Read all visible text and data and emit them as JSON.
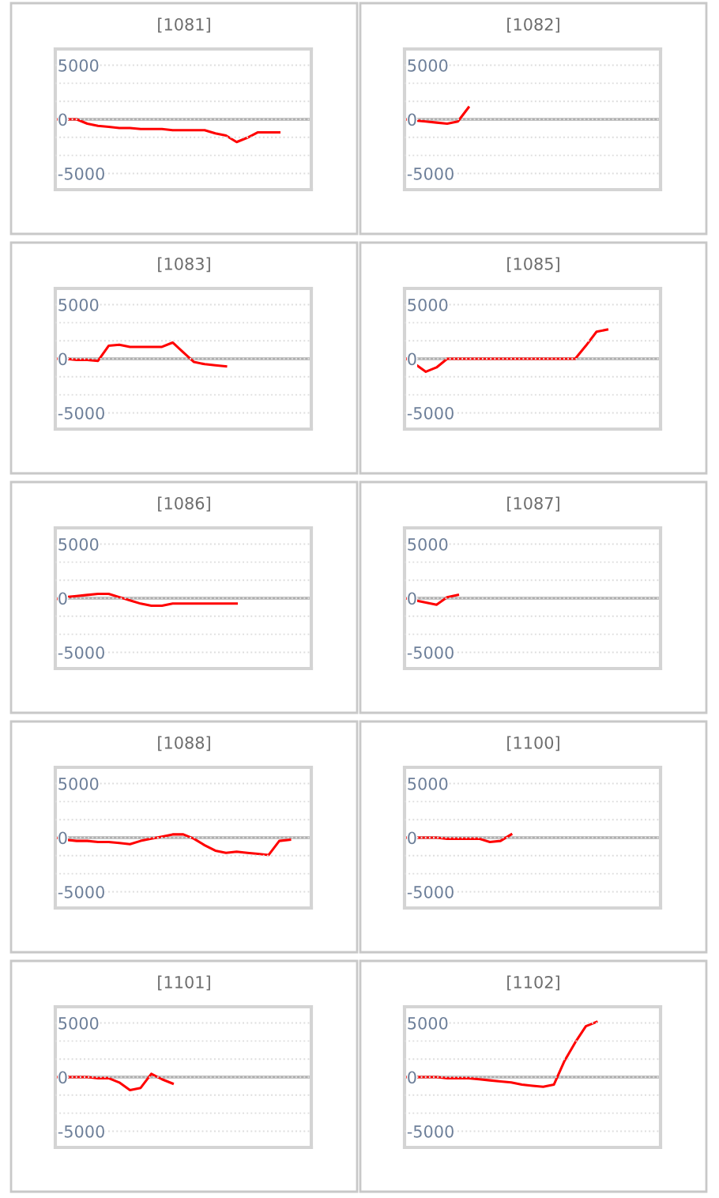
{
  "chart_data": [
    {
      "type": "line",
      "title": "[1081]",
      "categories": [
        null,
        null,
        null,
        null,
        null,
        null,
        null,
        null,
        null,
        null,
        null,
        null,
        null,
        null,
        null,
        null,
        null,
        null,
        null,
        null,
        null,
        null,
        null,
        null,
        null
      ],
      "series": [
        {
          "color": "#ff0000",
          "values": [
            0,
            0,
            0,
            -400,
            -600,
            -700,
            -800,
            -800,
            -900,
            -900,
            -900,
            -1000,
            -1000,
            -1000,
            -1000,
            -1300,
            -1500,
            -2100,
            -1700,
            -1200,
            -1200,
            -1200,
            null,
            null,
            null
          ]
        }
      ],
      "ylim": [
        -6500,
        6500
      ],
      "yticks": [
        -5000,
        {
          "value": -3333,
          "label": null
        },
        {
          "value": -1667,
          "label": null
        },
        0,
        {
          "value": 1667,
          "label": null
        },
        {
          "value": 3333,
          "label": null
        },
        5000
      ],
      "grid": "y",
      "tick_labels": "y",
      "ref_lines": [
        {
          "axis": "y",
          "value": 0,
          "color": "#b0b0b0"
        }
      ]
    },
    {
      "type": "line",
      "title": "[1082]",
      "categories": [
        null,
        null,
        null,
        null,
        null,
        null,
        null,
        null,
        null,
        null,
        null,
        null,
        null,
        null,
        null,
        null,
        null,
        null,
        null,
        null,
        null,
        null,
        null,
        null,
        null
      ],
      "series": [
        {
          "color": "#ff0000",
          "values": [
            0,
            -100,
            -200,
            -300,
            -400,
            -200,
            1100,
            null,
            null,
            null,
            null,
            null,
            null,
            null,
            null,
            null,
            null,
            null,
            null,
            null,
            null,
            null,
            null,
            null,
            null
          ]
        }
      ],
      "ylim": [
        -6500,
        6500
      ],
      "yticks": [
        -5000,
        {
          "value": -3333,
          "label": null
        },
        {
          "value": -1667,
          "label": null
        },
        0,
        {
          "value": 1667,
          "label": null
        },
        {
          "value": 3333,
          "label": null
        },
        5000
      ],
      "grid": "y",
      "tick_labels": "y",
      "ref_lines": [
        {
          "axis": "y",
          "value": 0,
          "color": "#b0b0b0"
        }
      ]
    },
    {
      "type": "line",
      "title": "[1083]",
      "categories": [
        null,
        null,
        null,
        null,
        null,
        null,
        null,
        null,
        null,
        null,
        null,
        null,
        null,
        null,
        null,
        null,
        null,
        null,
        null,
        null,
        null,
        null,
        null,
        null,
        null
      ],
      "series": [
        {
          "color": "#ff0000",
          "values": [
            0,
            0,
            -100,
            -100,
            -200,
            1200,
            1300,
            1100,
            1100,
            1100,
            1100,
            1500,
            600,
            -300,
            -500,
            -600,
            -700,
            null,
            null,
            null,
            null,
            null,
            null,
            null,
            null
          ]
        }
      ],
      "ylim": [
        -6500,
        6500
      ],
      "yticks": [
        -5000,
        {
          "value": -3333,
          "label": null
        },
        {
          "value": -1667,
          "label": null
        },
        0,
        {
          "value": 1667,
          "label": null
        },
        {
          "value": 3333,
          "label": null
        },
        5000
      ],
      "grid": "y",
      "tick_labels": "y",
      "ref_lines": [
        {
          "axis": "y",
          "value": 0,
          "color": "#b0b0b0"
        }
      ]
    },
    {
      "type": "line",
      "title": "[1085]",
      "categories": [
        null,
        null,
        null,
        null,
        null,
        null,
        null,
        null,
        null,
        null,
        null,
        null,
        null,
        null,
        null,
        null,
        null,
        null,
        null,
        null,
        null,
        null,
        null,
        null,
        null
      ],
      "series": [
        {
          "color": "#ff0000",
          "values": [
            100,
            -500,
            -1200,
            -800,
            0,
            0,
            0,
            0,
            0,
            0,
            0,
            0,
            0,
            0,
            0,
            0,
            0,
            1200,
            2500,
            2700,
            null,
            null,
            null,
            null,
            null
          ]
        }
      ],
      "ylim": [
        -6500,
        6500
      ],
      "yticks": [
        -5000,
        {
          "value": -3333,
          "label": null
        },
        {
          "value": -1667,
          "label": null
        },
        0,
        {
          "value": 1667,
          "label": null
        },
        {
          "value": 3333,
          "label": null
        },
        5000
      ],
      "grid": "y",
      "tick_labels": "y",
      "ref_lines": [
        {
          "axis": "y",
          "value": 0,
          "color": "#b0b0b0"
        }
      ]
    },
    {
      "type": "line",
      "title": "[1086]",
      "categories": [
        null,
        null,
        null,
        null,
        null,
        null,
        null,
        null,
        null,
        null,
        null,
        null,
        null,
        null,
        null,
        null,
        null,
        null,
        null,
        null,
        null,
        null,
        null,
        null,
        null
      ],
      "series": [
        {
          "color": "#ff0000",
          "values": [
            -100,
            100,
            200,
            300,
            400,
            400,
            100,
            -200,
            -500,
            -700,
            -700,
            -500,
            -500,
            -500,
            -500,
            -500,
            -500,
            -500,
            null,
            null,
            null,
            null,
            null,
            null,
            null
          ]
        }
      ],
      "ylim": [
        -6500,
        6500
      ],
      "yticks": [
        -5000,
        {
          "value": -3333,
          "label": null
        },
        {
          "value": -1667,
          "label": null
        },
        0,
        {
          "value": 1667,
          "label": null
        },
        {
          "value": 3333,
          "label": null
        },
        5000
      ],
      "grid": "y",
      "tick_labels": "y",
      "ref_lines": [
        {
          "axis": "y",
          "value": 0,
          "color": "#b0b0b0"
        }
      ]
    },
    {
      "type": "line",
      "title": "[1087]",
      "categories": [
        null,
        null,
        null,
        null,
        null,
        null,
        null,
        null,
        null,
        null,
        null,
        null,
        null,
        null,
        null,
        null,
        null,
        null,
        null,
        null,
        null,
        null,
        null,
        null,
        null
      ],
      "series": [
        {
          "color": "#ff0000",
          "values": [
            0,
            -200,
            -400,
            -600,
            100,
            300,
            null,
            null,
            null,
            null,
            null,
            null,
            null,
            null,
            null,
            null,
            null,
            null,
            null,
            null,
            null,
            null,
            null,
            null,
            null
          ]
        }
      ],
      "ylim": [
        -6500,
        6500
      ],
      "yticks": [
        -5000,
        {
          "value": -3333,
          "label": null
        },
        {
          "value": -1667,
          "label": null
        },
        0,
        {
          "value": 1667,
          "label": null
        },
        {
          "value": 3333,
          "label": null
        },
        5000
      ],
      "grid": "y",
      "tick_labels": "y",
      "ref_lines": [
        {
          "axis": "y",
          "value": 0,
          "color": "#b0b0b0"
        }
      ]
    },
    {
      "type": "line",
      "title": "[1088]",
      "categories": [
        null,
        null,
        null,
        null,
        null,
        null,
        null,
        null,
        null,
        null,
        null,
        null,
        null,
        null,
        null,
        null,
        null,
        null,
        null,
        null,
        null,
        null,
        null,
        null,
        null
      ],
      "series": [
        {
          "color": "#ff0000",
          "values": [
            0,
            -200,
            -300,
            -300,
            -400,
            -400,
            -500,
            -600,
            -300,
            -100,
            100,
            300,
            300,
            -100,
            -700,
            -1200,
            -1400,
            -1300,
            -1400,
            -1500,
            -1600,
            -300,
            -200,
            null,
            null
          ]
        }
      ],
      "ylim": [
        -6500,
        6500
      ],
      "yticks": [
        -5000,
        {
          "value": -3333,
          "label": null
        },
        {
          "value": -1667,
          "label": null
        },
        0,
        {
          "value": 1667,
          "label": null
        },
        {
          "value": 3333,
          "label": null
        },
        5000
      ],
      "grid": "y",
      "tick_labels": "y",
      "ref_lines": [
        {
          "axis": "y",
          "value": 0,
          "color": "#b0b0b0"
        }
      ]
    },
    {
      "type": "line",
      "title": "[1100]",
      "categories": [
        null,
        null,
        null,
        null,
        null,
        null,
        null,
        null,
        null,
        null,
        null,
        null,
        null,
        null,
        null,
        null,
        null,
        null,
        null,
        null,
        null,
        null,
        null,
        null,
        null
      ],
      "series": [
        {
          "color": "#ff0000",
          "values": [
            0,
            0,
            0,
            0,
            -100,
            -100,
            -100,
            -100,
            -400,
            -300,
            300,
            null,
            null,
            null,
            null,
            null,
            null,
            null,
            null,
            null,
            null,
            null,
            null,
            null,
            null
          ]
        }
      ],
      "ylim": [
        -6500,
        6500
      ],
      "yticks": [
        -5000,
        {
          "value": -3333,
          "label": null
        },
        {
          "value": -1667,
          "label": null
        },
        0,
        {
          "value": 1667,
          "label": null
        },
        {
          "value": 3333,
          "label": null
        },
        5000
      ],
      "grid": "y",
      "tick_labels": "y",
      "ref_lines": [
        {
          "axis": "y",
          "value": 0,
          "color": "#b0b0b0"
        }
      ]
    },
    {
      "type": "line",
      "title": "[1101]",
      "categories": [
        null,
        null,
        null,
        null,
        null,
        null,
        null,
        null,
        null,
        null,
        null,
        null,
        null,
        null,
        null,
        null,
        null,
        null,
        null,
        null,
        null,
        null,
        null,
        null,
        null
      ],
      "series": [
        {
          "color": "#ff0000",
          "values": [
            0,
            0,
            0,
            0,
            -100,
            -100,
            -500,
            -1200,
            -1000,
            300,
            -200,
            -600,
            null,
            null,
            null,
            null,
            null,
            null,
            null,
            null,
            null,
            null,
            null,
            null,
            null
          ]
        }
      ],
      "ylim": [
        -6500,
        6500
      ],
      "yticks": [
        -5000,
        {
          "value": -3333,
          "label": null
        },
        {
          "value": -1667,
          "label": null
        },
        0,
        {
          "value": 1667,
          "label": null
        },
        {
          "value": 3333,
          "label": null
        },
        5000
      ],
      "grid": "y",
      "tick_labels": "y",
      "ref_lines": [
        {
          "axis": "y",
          "value": 0,
          "color": "#b0b0b0"
        }
      ]
    },
    {
      "type": "line",
      "title": "[1102]",
      "categories": [
        null,
        null,
        null,
        null,
        null,
        null,
        null,
        null,
        null,
        null,
        null,
        null,
        null,
        null,
        null,
        null,
        null,
        null,
        null,
        null,
        null,
        null,
        null,
        null,
        null
      ],
      "series": [
        {
          "color": "#ff0000",
          "values": [
            0,
            0,
            0,
            0,
            -100,
            -100,
            -100,
            -200,
            -300,
            -400,
            -500,
            -700,
            -800,
            -900,
            -700,
            1500,
            3200,
            4700,
            5100,
            null,
            null,
            null,
            null,
            null,
            null
          ]
        }
      ],
      "ylim": [
        -6500,
        6500
      ],
      "yticks": [
        -5000,
        {
          "value": -3333,
          "label": null
        },
        {
          "value": -1667,
          "label": null
        },
        0,
        {
          "value": 1667,
          "label": null
        },
        {
          "value": 3333,
          "label": null
        },
        5000
      ],
      "grid": "y",
      "tick_labels": "y",
      "ref_lines": [
        {
          "axis": "y",
          "value": 0,
          "color": "#b0b0b0"
        }
      ]
    }
  ]
}
